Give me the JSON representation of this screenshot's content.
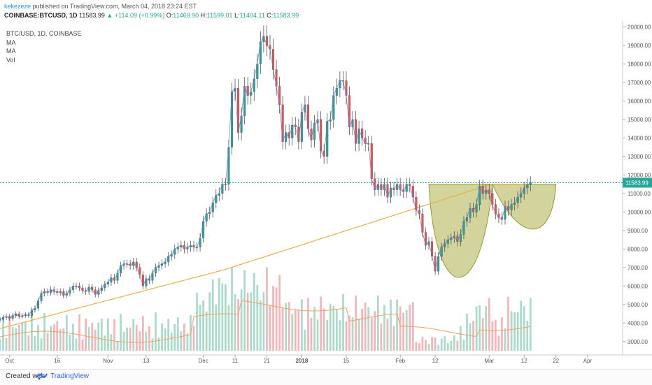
{
  "header": {
    "author": "kekezeze",
    "published_text": "published on TradingView.com, March 04, 2018 23:24 EST",
    "symbol": "COINBASE:BTCUSD, 1D",
    "last": "11583.99",
    "change": "+114.09 (+0.99%)",
    "o_label": "O:",
    "o_value": "11469.90",
    "h_label": "H:",
    "h_value": "11599.01",
    "l_label": "L:",
    "l_value": "11404.11",
    "c_label": "C:",
    "c_value": "11583.99"
  },
  "legend": {
    "title": "BTC/USD, 1D, COINBASE",
    "ma1": "MA",
    "ma2": "MA",
    "vol": "Vol"
  },
  "footer": {
    "created": "Created with",
    "brand": "TradingView"
  },
  "colors": {
    "up": "#26a69a",
    "down": "#ef5350",
    "up_vol": "#a8dcc8",
    "down_vol": "#f6b4b9",
    "ma_long": "#e8b04b",
    "ma_short": "#6b6bd6",
    "vol_ma": "#f5a060",
    "pattern_fill": "#b5b55a",
    "price_line": "#26a69a"
  },
  "chart_data": {
    "type": "candlestick",
    "price_axis_labels": [
      "20000.00",
      "19000.00",
      "18000.00",
      "17000.00",
      "16000.00",
      "15000.00",
      "14000.00",
      "13000.00",
      "12000.00",
      "11000.00",
      "10000.00",
      "9000.00",
      "8000.00",
      "7000.00",
      "6000.00",
      "5000.00",
      "4000.00",
      "3000.00"
    ],
    "last_price_label": "11583.99",
    "ylim": [
      2500,
      20100
    ],
    "x_tick_labels": [
      {
        "label": "Oct",
        "date": "2017-10-01"
      },
      {
        "label": "16",
        "date": "2017-10-16"
      },
      {
        "label": "Nov",
        "date": "2017-11-01"
      },
      {
        "label": "13",
        "date": "2017-11-13"
      },
      {
        "label": "Dec",
        "date": "2017-12-01"
      },
      {
        "label": "11",
        "date": "2017-12-11"
      },
      {
        "label": "21",
        "date": "2017-12-21"
      },
      {
        "label": "2018",
        "date": "2018-01-01"
      },
      {
        "label": "15",
        "date": "2018-01-15"
      },
      {
        "label": "Feb",
        "date": "2018-02-01"
      },
      {
        "label": "12",
        "date": "2018-02-12"
      },
      {
        "label": "Mar",
        "date": "2018-03-01"
      },
      {
        "label": "12",
        "date": "2018-03-12"
      },
      {
        "label": "22",
        "date": "2018-03-22"
      },
      {
        "label": "Apr",
        "date": "2018-04-01"
      }
    ],
    "x_range": [
      "2017-09-28",
      "2018-04-12"
    ],
    "closes": [
      4200,
      4300,
      4350,
      4250,
      4400,
      4500,
      4350,
      4400,
      4450,
      4400,
      4700,
      4800,
      5200,
      5600,
      5700,
      5650,
      5800,
      5700,
      5650,
      5700,
      5500,
      5600,
      5800,
      6000,
      6000,
      5900,
      5750,
      5700,
      5950,
      5800,
      5550,
      5750,
      5900,
      6100,
      6200,
      6450,
      6300,
      6700,
      7100,
      7200,
      7200,
      7100,
      7300,
      7000,
      6600,
      6000,
      6400,
      6300,
      6700,
      7000,
      7100,
      7200,
      7300,
      7600,
      7700,
      8000,
      8100,
      8200,
      8000,
      8100,
      8200,
      8100,
      8100,
      8600,
      9500,
      9900,
      10000,
      10500,
      10900,
      11000,
      11500,
      11500,
      13500,
      16500,
      16700,
      14300,
      15200,
      16800,
      16300,
      16500,
      17200,
      18000,
      19200,
      19500,
      19000,
      18800,
      17700,
      16800,
      15800,
      13800,
      14300,
      14000,
      14700,
      14600,
      13800,
      15400,
      15800,
      14500,
      13900,
      14800,
      15000,
      13300,
      13000,
      14900,
      15000,
      16300,
      16700,
      17100,
      17100,
      16300,
      14600,
      15000,
      13700,
      14500,
      14000,
      13700,
      13700,
      11800,
      11200,
      11500,
      11200,
      11500,
      10800,
      11300,
      11200,
      11500,
      11200,
      11100,
      11500,
      11400,
      10800,
      10100,
      9900,
      8900,
      8200,
      8400,
      7600,
      6800,
      7600,
      8100,
      8300,
      8500,
      8600,
      8700,
      8400,
      8800,
      9500,
      9700,
      10200,
      10000,
      10400,
      11400,
      11000,
      11200,
      11000,
      10400,
      9900,
      9700,
      9600,
      10300,
      10100,
      10400,
      10500,
      10800,
      11000,
      11300,
      11470,
      11584
    ],
    "volume_note": "volume histogram in lower pane with moving average",
    "patterns": [
      "cup",
      "handle"
    ]
  }
}
